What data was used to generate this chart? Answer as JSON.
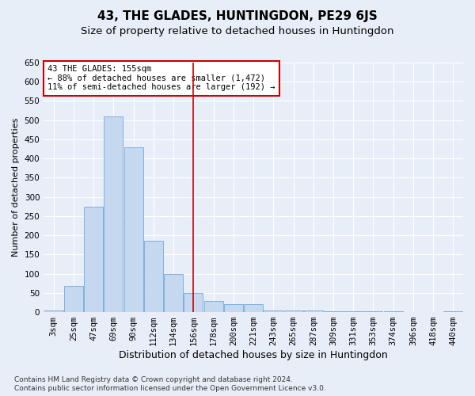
{
  "title": "43, THE GLADES, HUNTINGDON, PE29 6JS",
  "subtitle": "Size of property relative to detached houses in Huntingdon",
  "xlabel": "Distribution of detached houses by size in Huntingdon",
  "ylabel": "Number of detached properties",
  "footnote1": "Contains HM Land Registry data © Crown copyright and database right 2024.",
  "footnote2": "Contains public sector information licensed under the Open Government Licence v3.0.",
  "bar_labels": [
    "3sqm",
    "25sqm",
    "47sqm",
    "69sqm",
    "90sqm",
    "112sqm",
    "134sqm",
    "156sqm",
    "178sqm",
    "200sqm",
    "221sqm",
    "243sqm",
    "265sqm",
    "287sqm",
    "309sqm",
    "331sqm",
    "353sqm",
    "374sqm",
    "396sqm",
    "418sqm",
    "440sqm"
  ],
  "bar_values": [
    5,
    68,
    275,
    510,
    430,
    185,
    100,
    50,
    30,
    20,
    20,
    5,
    5,
    5,
    2,
    2,
    2,
    2,
    0,
    0,
    2
  ],
  "bar_color": "#c5d8f0",
  "bar_edge_color": "#5a9fd4",
  "background_color": "#e8eef8",
  "grid_color": "#ffffff",
  "red_line_index": 7,
  "red_line_color": "#cc0000",
  "annotation_text": "43 THE GLADES: 155sqm\n← 88% of detached houses are smaller (1,472)\n11% of semi-detached houses are larger (192) →",
  "annotation_box_color": "#ffffff",
  "annotation_box_edge": "#cc0000",
  "ylim": [
    0,
    650
  ],
  "yticks": [
    0,
    50,
    100,
    150,
    200,
    250,
    300,
    350,
    400,
    450,
    500,
    550,
    600,
    650
  ],
  "title_fontsize": 11,
  "subtitle_fontsize": 9.5,
  "xlabel_fontsize": 9,
  "ylabel_fontsize": 8,
  "tick_fontsize": 7.5,
  "annotation_fontsize": 7.5,
  "footnote_fontsize": 6.5
}
